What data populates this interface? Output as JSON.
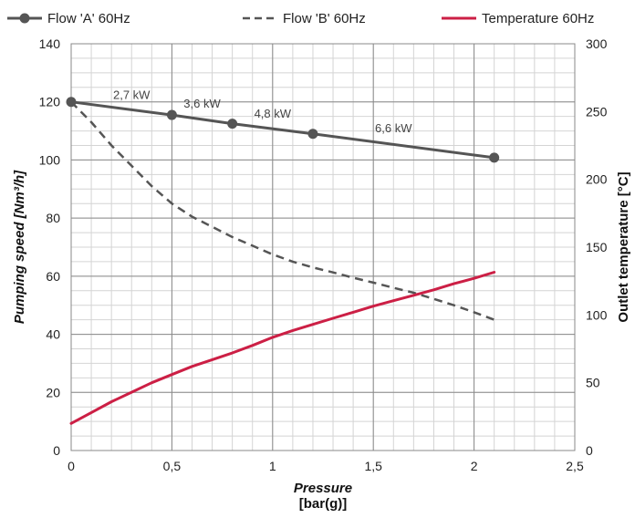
{
  "chart_data": {
    "type": "line",
    "legend": {
      "placement": "top",
      "entries": [
        "Flow 'A' 60Hz",
        "Flow 'B' 60Hz",
        "Temperature 60Hz"
      ]
    },
    "xlabel": "Pressure",
    "xunit": "[bar(g)]",
    "ylabel": "Pumping speed [Nm³/h]",
    "y2label": "Outlet temperature [°C]",
    "xlim": [
      0,
      2.5
    ],
    "ylim": [
      0,
      140
    ],
    "y2lim": [
      0,
      300
    ],
    "x_ticks": [
      "0",
      "0,5",
      "1",
      "1,5",
      "2",
      "2,5"
    ],
    "x_tick_values": [
      0,
      0.5,
      1,
      1.5,
      2,
      2.5
    ],
    "y_ticks": [
      "0",
      "20",
      "40",
      "60",
      "80",
      "100",
      "120",
      "140"
    ],
    "y_tick_values": [
      0,
      20,
      40,
      60,
      80,
      100,
      120,
      140
    ],
    "y2_ticks": [
      "0",
      "50",
      "100",
      "150",
      "200",
      "250",
      "300"
    ],
    "y2_tick_values": [
      0,
      50,
      100,
      150,
      200,
      250,
      300
    ],
    "grid": true,
    "series": [
      {
        "name": "Flow 'A' 60Hz",
        "axis": "left",
        "style": "solid-markers",
        "color": "#555555",
        "x": [
          0,
          0.5,
          0.8,
          1.2,
          2.1
        ],
        "y": [
          120,
          115.5,
          112.5,
          109,
          100.8
        ]
      },
      {
        "name": "Flow 'B' 60Hz",
        "axis": "left",
        "style": "dashed",
        "color": "#555555",
        "x": [
          0,
          0.1,
          0.2,
          0.3,
          0.4,
          0.5,
          0.6,
          0.7,
          0.8,
          0.9,
          1.0,
          1.1,
          1.2,
          1.3,
          1.4,
          1.5,
          1.6,
          1.7,
          1.8,
          1.9,
          2.0,
          2.1
        ],
        "y": [
          120,
          113,
          105,
          98,
          91,
          85,
          80.5,
          77,
          73.5,
          70.5,
          67.5,
          65,
          63,
          61.3,
          59.5,
          57.8,
          56,
          54.3,
          52.2,
          50,
          47.6,
          45
        ]
      },
      {
        "name": "Temperature 60Hz",
        "axis": "right",
        "style": "solid",
        "color": "#cc1f45",
        "x": [
          0,
          0.1,
          0.2,
          0.3,
          0.4,
          0.5,
          0.6,
          0.7,
          0.8,
          0.9,
          1.0,
          1.1,
          1.2,
          1.3,
          1.4,
          1.5,
          1.6,
          1.7,
          1.8,
          1.9,
          2.0,
          2.1
        ],
        "y": [
          20,
          28,
          36,
          43,
          50,
          56,
          62,
          67,
          72,
          77.5,
          83.5,
          88.5,
          93,
          97.5,
          102,
          106.5,
          110.5,
          114.5,
          118.5,
          123,
          127,
          131.5
        ]
      }
    ],
    "annotations": [
      {
        "text": "2,7 kW",
        "x": 0.3,
        "y": 121
      },
      {
        "text": "3,6 kW",
        "x": 0.65,
        "y": 118
      },
      {
        "text": "4,8 kW",
        "x": 1.0,
        "y": 114.5
      },
      {
        "text": "6,6 kW",
        "x": 1.6,
        "y": 109.5
      }
    ]
  }
}
